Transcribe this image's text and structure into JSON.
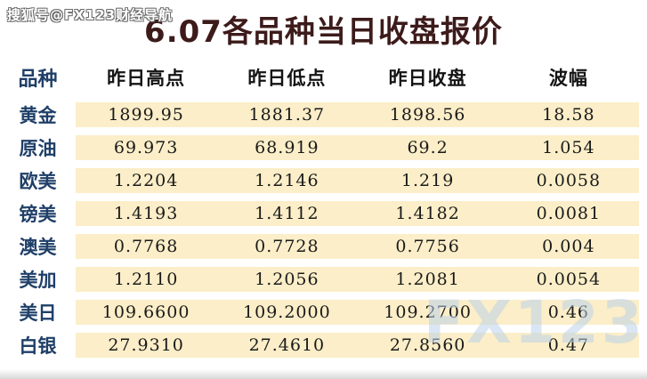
{
  "watermarks": {
    "top": "搜狐号@FX123财经导航",
    "bottom": "FX123"
  },
  "title": "6.07各品种当日收盘报价",
  "table": {
    "label_header": "品种",
    "columns": [
      "昨日高点",
      "昨日低点",
      "昨日收盘",
      "波幅"
    ],
    "rows": [
      {
        "label": "黄金",
        "values": [
          "1899.95",
          "1881.37",
          "1898.56",
          "18.58"
        ]
      },
      {
        "label": "原油",
        "values": [
          "69.973",
          "68.919",
          "69.2",
          "1.054"
        ]
      },
      {
        "label": "欧美",
        "values": [
          "1.2204",
          "1.2146",
          "1.219",
          "0.0058"
        ]
      },
      {
        "label": "镑美",
        "values": [
          "1.4193",
          "1.4112",
          "1.4182",
          "0.0081"
        ]
      },
      {
        "label": "澳美",
        "values": [
          "0.7768",
          "0.7728",
          "0.7756",
          "0.004"
        ]
      },
      {
        "label": "美加",
        "values": [
          "1.2110",
          "1.2056",
          "1.2081",
          "0.0054"
        ]
      },
      {
        "label": "美日",
        "values": [
          "109.6600",
          "109.2000",
          "109.2700",
          "0.46"
        ]
      },
      {
        "label": "白银",
        "values": [
          "27.9310",
          "27.4610",
          "27.8560",
          "0.47"
        ]
      }
    ]
  },
  "colors": {
    "band": "#fbeec8",
    "label_text": "#1f3f68",
    "title_text": "#3d1b1b",
    "watermark_blue": "rgba(188,210,234,0.55)"
  }
}
